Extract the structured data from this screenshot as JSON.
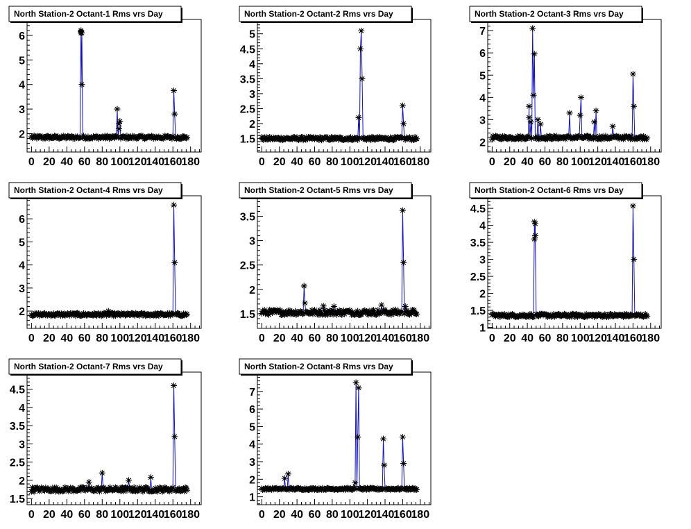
{
  "chart_data": [
    {
      "type": "scatter",
      "title": "North Station-2 Octant-1 Rms vrs Day",
      "xlim": [
        -5,
        192
      ],
      "ylim": [
        1.25,
        6.65
      ],
      "xticks": [
        0,
        20,
        40,
        60,
        80,
        100,
        120,
        140,
        160,
        180
      ],
      "yticks": [
        2,
        3,
        4,
        5,
        6
      ],
      "grid": false,
      "legend": "none",
      "baseline": 1.85,
      "spikes": [
        {
          "x": 56,
          "values": [
            6.15,
            6.2,
            6.1
          ]
        },
        {
          "x": 57,
          "values": [
            4.0,
            6.1
          ]
        },
        {
          "x": 97,
          "values": [
            3.0
          ]
        },
        {
          "x": 99,
          "values": [
            2.2,
            2.4
          ]
        },
        {
          "x": 100,
          "values": [
            2.5
          ]
        },
        {
          "x": 161,
          "values": [
            3.75
          ]
        },
        {
          "x": 162,
          "values": [
            2.8
          ]
        }
      ]
    },
    {
      "type": "scatter",
      "title": "North Station-2 Octant-2 Rms vrs Day",
      "xlim": [
        -5,
        192
      ],
      "ylim": [
        1.05,
        5.48
      ],
      "xticks": [
        0,
        20,
        40,
        60,
        80,
        100,
        120,
        140,
        160,
        180
      ],
      "yticks": [
        1.5,
        2,
        2.5,
        3,
        3.5,
        4,
        4.5,
        5
      ],
      "grid": false,
      "legend": "none",
      "baseline": 1.5,
      "spikes": [
        {
          "x": 110,
          "values": [
            2.2
          ]
        },
        {
          "x": 112,
          "values": [
            4.5
          ]
        },
        {
          "x": 113,
          "values": [
            5.1
          ]
        },
        {
          "x": 114,
          "values": [
            3.5
          ]
        },
        {
          "x": 160,
          "values": [
            2.6
          ]
        },
        {
          "x": 161,
          "values": [
            2.0
          ]
        }
      ]
    },
    {
      "type": "scatter",
      "title": "North Station-2 Octant-3 Rms vrs Day",
      "xlim": [
        -5,
        192
      ],
      "ylim": [
        1.55,
        7.5
      ],
      "xticks": [
        0,
        20,
        40,
        60,
        80,
        100,
        120,
        140,
        160,
        180
      ],
      "yticks": [
        2,
        3,
        4,
        5,
        6,
        7
      ],
      "grid": false,
      "legend": "none",
      "baseline": 2.2,
      "spikes": [
        {
          "x": 42,
          "values": [
            3.6,
            3.1
          ]
        },
        {
          "x": 44,
          "values": [
            2.9
          ]
        },
        {
          "x": 46,
          "values": [
            7.1
          ]
        },
        {
          "x": 47,
          "values": [
            4.1
          ]
        },
        {
          "x": 48,
          "values": [
            5.95
          ]
        },
        {
          "x": 52,
          "values": [
            3.0
          ]
        },
        {
          "x": 55,
          "values": [
            2.8
          ]
        },
        {
          "x": 88,
          "values": [
            3.3
          ]
        },
        {
          "x": 100,
          "values": [
            3.2
          ]
        },
        {
          "x": 101,
          "values": [
            4.0
          ]
        },
        {
          "x": 116,
          "values": [
            2.9
          ]
        },
        {
          "x": 118,
          "values": [
            3.4
          ]
        },
        {
          "x": 137,
          "values": [
            2.7
          ]
        },
        {
          "x": 160,
          "values": [
            5.05
          ]
        },
        {
          "x": 161,
          "values": [
            3.6
          ]
        }
      ]
    },
    {
      "type": "scatter",
      "title": "North Station-2 Octant-4 Rms vrs Day",
      "xlim": [
        -5,
        192
      ],
      "ylim": [
        1.25,
        7.0
      ],
      "xticks": [
        0,
        20,
        40,
        60,
        80,
        100,
        120,
        140,
        160,
        180
      ],
      "yticks": [
        2,
        3,
        4,
        5,
        6
      ],
      "grid": false,
      "legend": "none",
      "baseline": 1.85,
      "spikes": [
        {
          "x": 87,
          "values": [
            2.0
          ]
        },
        {
          "x": 161,
          "values": [
            6.6
          ]
        },
        {
          "x": 162,
          "values": [
            4.1
          ]
        }
      ]
    },
    {
      "type": "scatter",
      "title": "North Station-2 Octant-5 Rms vrs Day",
      "xlim": [
        -5,
        192
      ],
      "ylim": [
        1.2,
        3.92
      ],
      "xticks": [
        0,
        20,
        40,
        60,
        80,
        100,
        120,
        140,
        160,
        180
      ],
      "yticks": [
        1.5,
        2,
        2.5,
        3,
        3.5
      ],
      "grid": false,
      "legend": "none",
      "baseline": 1.53,
      "spikes": [
        {
          "x": 48,
          "values": [
            2.07
          ]
        },
        {
          "x": 49,
          "values": [
            1.72
          ]
        },
        {
          "x": 70,
          "values": [
            1.66
          ]
        },
        {
          "x": 82,
          "values": [
            1.65
          ]
        },
        {
          "x": 136,
          "values": [
            1.68
          ]
        },
        {
          "x": 160,
          "values": [
            3.62
          ]
        },
        {
          "x": 161,
          "values": [
            2.55
          ]
        },
        {
          "x": 163,
          "values": [
            1.65
          ]
        }
      ]
    },
    {
      "type": "scatter",
      "title": "North Station-2 Octant-6 Rms vrs Day",
      "xlim": [
        -5,
        192
      ],
      "ylim": [
        0.97,
        4.87
      ],
      "xticks": [
        0,
        20,
        40,
        60,
        80,
        100,
        120,
        140,
        160,
        180
      ],
      "yticks": [
        1,
        1.5,
        2,
        2.5,
        3,
        3.5,
        4,
        4.5
      ],
      "grid": false,
      "legend": "none",
      "baseline": 1.35,
      "spikes": [
        {
          "x": 48,
          "values": [
            4.1,
            3.6
          ]
        },
        {
          "x": 49,
          "values": [
            4.05,
            3.7
          ]
        },
        {
          "x": 160,
          "values": [
            4.57
          ]
        },
        {
          "x": 161,
          "values": [
            3.0
          ]
        }
      ]
    },
    {
      "type": "scatter",
      "title": "North Station-2 Octant-7 Rms vrs Day",
      "xlim": [
        -5,
        192
      ],
      "ylim": [
        1.33,
        4.97
      ],
      "xticks": [
        0,
        20,
        40,
        60,
        80,
        100,
        120,
        140,
        160,
        180
      ],
      "yticks": [
        1.5,
        2,
        2.5,
        3,
        3.5,
        4,
        4.5
      ],
      "grid": false,
      "legend": "none",
      "baseline": 1.75,
      "spikes": [
        {
          "x": 65,
          "values": [
            1.95
          ]
        },
        {
          "x": 80,
          "values": [
            2.2
          ]
        },
        {
          "x": 110,
          "values": [
            2.0
          ]
        },
        {
          "x": 135,
          "values": [
            2.08
          ]
        },
        {
          "x": 161,
          "values": [
            4.6
          ]
        },
        {
          "x": 162,
          "values": [
            3.2
          ]
        }
      ]
    },
    {
      "type": "scatter",
      "title": "North Station-2 Octant-8 Rms vrs Day",
      "xlim": [
        -5,
        192
      ],
      "ylim": [
        0.55,
        8.1
      ],
      "xticks": [
        0,
        20,
        40,
        60,
        80,
        100,
        120,
        140,
        160,
        180
      ],
      "yticks": [
        1,
        2,
        3,
        4,
        5,
        6,
        7
      ],
      "grid": false,
      "legend": "none",
      "baseline": 1.45,
      "spikes": [
        {
          "x": 26,
          "values": [
            2.05
          ]
        },
        {
          "x": 30,
          "values": [
            2.3
          ]
        },
        {
          "x": 106,
          "values": [
            1.8
          ]
        },
        {
          "x": 107,
          "values": [
            7.5
          ]
        },
        {
          "x": 109,
          "values": [
            4.4
          ]
        },
        {
          "x": 110,
          "values": [
            7.2
          ]
        },
        {
          "x": 138,
          "values": [
            4.3
          ]
        },
        {
          "x": 139,
          "values": [
            2.8
          ]
        },
        {
          "x": 160,
          "values": [
            4.4
          ]
        },
        {
          "x": 161,
          "values": [
            2.9
          ]
        }
      ]
    }
  ]
}
